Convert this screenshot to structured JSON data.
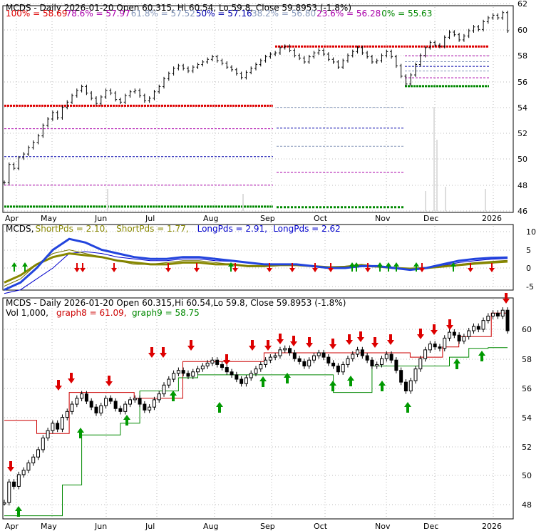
{
  "panel1": {
    "title": "MCDS - Daily 2026-01-20 Open 60.315, Hi 60.54, Lo 59.8, Close 59.8953 (-1.8%)",
    "fib_legend": [
      {
        "label": "100% = 58.69",
        "color": "#dd0000"
      },
      {
        "label": "78.6% = 57.97",
        "color": "#aa00aa"
      },
      {
        "label": "61.8% = 57.52",
        "color": "#8899bb"
      },
      {
        "label": "50% = 57.16",
        "color": "#0000aa"
      },
      {
        "label": "38.2% = 56.80",
        "color": "#8899bb"
      },
      {
        "label": "23.6% = 56.28",
        "color": "#aa00aa"
      },
      {
        "label": "0% = 55.63",
        "color": "#008800"
      }
    ],
    "y_ticks": [
      "62",
      "60",
      "58",
      "56",
      "54",
      "52",
      "50",
      "48",
      "46"
    ]
  },
  "panel2": {
    "legend": [
      {
        "label": "MCDS",
        "color": "#000000"
      },
      {
        "label": "ShortPds = 2.10",
        "color": "#888800"
      },
      {
        "label": "ShortPds = 1.77",
        "color": "#888800"
      },
      {
        "label": "LongPds = 2.91",
        "color": "#0000cc"
      },
      {
        "label": "LongPds = 2.62",
        "color": "#0000cc"
      }
    ],
    "y_ticks": [
      "10",
      "5",
      "0",
      "-5"
    ]
  },
  "panel3": {
    "title": "MCDS - Daily 2026-01-20 Open 60.315,Hi 60.54,Lo 59.8, Close 59.8953 (-1.8%)",
    "legend": [
      {
        "label": "Vol 1,000",
        "color": "#000000"
      },
      {
        "label": "graph8 = 61.09",
        "color": "#cc0000"
      },
      {
        "label": "graph9 = 58.75",
        "color": "#008800"
      }
    ],
    "y_ticks": [
      "60",
      "58",
      "56",
      "54",
      "52",
      "50",
      "48"
    ]
  },
  "x_ticks": [
    "Apr",
    "May",
    "Jun",
    "Jul",
    "Aug",
    "Sep",
    "Oct",
    "Nov",
    "Dec",
    "2026"
  ],
  "chart_data": {
    "type": "line",
    "x_unit": "trading day index (Apr 2025 to Jan 20 2026)",
    "close": [
      48.2,
      49.6,
      49.3,
      50.1,
      50.4,
      50.9,
      51.3,
      51.8,
      52.6,
      53.1,
      53.6,
      53.2,
      54.0,
      54.4,
      54.9,
      55.3,
      55.6,
      55.1,
      54.7,
      54.3,
      54.8,
      55.3,
      55.1,
      54.6,
      54.4,
      54.9,
      55.2,
      55.3,
      54.9,
      54.5,
      54.7,
      55.2,
      55.6,
      56.2,
      56.6,
      57.0,
      57.2,
      57.0,
      56.8,
      57.1,
      57.3,
      57.5,
      57.7,
      57.9,
      57.6,
      57.4,
      57.1,
      56.9,
      56.6,
      56.3,
      56.7,
      57.0,
      57.3,
      57.6,
      57.9,
      58.1,
      58.2,
      58.6,
      58.7,
      58.4,
      58.0,
      57.8,
      57.5,
      57.9,
      58.2,
      58.4,
      58.1,
      57.7,
      57.5,
      57.1,
      57.6,
      58.0,
      58.3,
      58.6,
      58.2,
      57.9,
      57.5,
      57.6,
      58.0,
      58.3,
      57.9,
      57.2,
      56.4,
      55.8,
      56.5,
      57.3,
      58.0,
      58.6,
      59.0,
      58.8,
      58.7,
      59.4,
      59.8,
      59.6,
      59.2,
      59.5,
      59.9,
      60.2,
      60.0,
      60.6,
      60.9,
      61.1,
      60.9,
      61.3,
      59.9
    ],
    "fib_levels": {
      "100%": 58.69,
      "78.6%": 57.97,
      "61.8%": 57.52,
      "50%": 57.16,
      "38.2%": 56.8,
      "23.6%": 56.28,
      "0%": 55.63
    },
    "fib_levels_prior": {
      "100%": 54.12,
      "78.6%": 52.35,
      "50%": 50.2,
      "23.6%": 48.0,
      "0%": 46.35
    },
    "oscillator": {
      "short1": [
        -5,
        -3,
        1,
        4,
        5,
        4,
        3,
        2,
        1,
        1,
        1.5,
        2,
        2,
        1.5,
        1,
        0.5,
        0.5,
        1,
        1,
        0.5,
        0,
        0.5,
        1,
        0.5,
        0,
        -0.5,
        0,
        0.5,
        1,
        1.5,
        1.8,
        2.1
      ],
      "short2": [
        -4,
        -2,
        1,
        3,
        4,
        3.5,
        3,
        2,
        1.5,
        1,
        1,
        1.5,
        1.5,
        1,
        1,
        0.5,
        0.5,
        0.8,
        0.8,
        0.5,
        0.2,
        0.3,
        0.6,
        0.4,
        0,
        -0.2,
        0,
        0.4,
        0.8,
        1.2,
        1.5,
        1.77
      ],
      "long1": [
        -6,
        -4,
        0,
        5,
        8,
        7,
        5,
        4,
        3,
        2.5,
        2.5,
        3,
        3,
        2.5,
        2,
        1.5,
        1,
        1,
        1,
        0.5,
        0,
        0,
        0.5,
        0.5,
        0,
        -0.5,
        0,
        1,
        2,
        2.5,
        2.8,
        2.91
      ],
      "long2": [
        -7,
        -6,
        -3,
        0,
        4,
        4.5,
        4,
        3,
        2.5,
        2,
        2,
        2.5,
        2.5,
        2,
        1.8,
        1.5,
        1,
        1,
        0.8,
        0.5,
        0.2,
        0.2,
        0.4,
        0.4,
        0.1,
        -0.2,
        0,
        0.6,
        1.5,
        2,
        2.4,
        2.62
      ],
      "ylim": [
        -7,
        11
      ]
    },
    "graph8": [
      53.8,
      53.8,
      52.9,
      52.9,
      55.7,
      55.7,
      55.7,
      55.7,
      55.3,
      55.3,
      55.3,
      57.8,
      57.8,
      57.8,
      57.8,
      57.8,
      58.4,
      58.4,
      58.4,
      58.4,
      58.4,
      58.4,
      58.4,
      58.4,
      58.4,
      58.1,
      58.1,
      58.8,
      59.5,
      59.5,
      61.1
    ],
    "graph9": [
      47.3,
      47.3,
      47.3,
      49.4,
      52.8,
      52.8,
      53.6,
      55.8,
      55.8,
      56.7,
      56.9,
      56.9,
      56.9,
      56.9,
      56.9,
      56.9,
      56.9,
      55.7,
      55.7,
      57.5,
      57.5,
      57.5,
      57.5,
      58.1,
      58.7,
      58.75
    ],
    "ylim_price": [
      45.8,
      62.4
    ]
  }
}
